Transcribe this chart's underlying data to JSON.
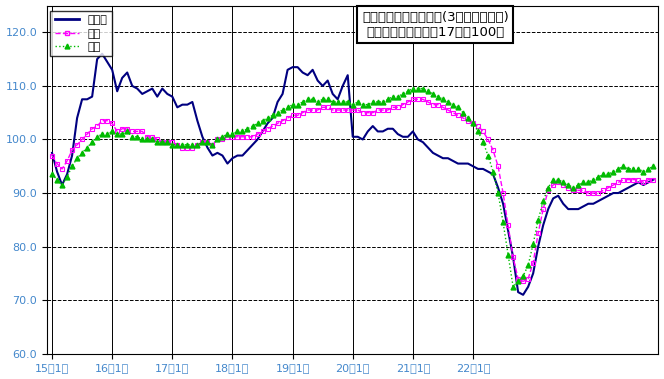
{
  "title_line1": "鉱工業生産指数の推移(3ヶ月移動平均)",
  "title_line2": "（季節調整済、平成17年＝100）",
  "xlabel_ticks": [
    "15年1月",
    "16年1月",
    "17年1月",
    "18年1月",
    "19年1月",
    "20年1月",
    "21年1月",
    "22年1月"
  ],
  "ylim": [
    60.0,
    125.0
  ],
  "yticks": [
    60.0,
    70.0,
    80.0,
    90.0,
    100.0,
    110.0,
    120.0
  ],
  "legend_labels": [
    "鳥取県",
    "中国",
    "全国"
  ],
  "line_colors": [
    "#000080",
    "#ff00ff",
    "#00bb00"
  ],
  "axis_label_color": "#4488cc",
  "bg_color": "#ffffff",
  "tottori": [
    97.5,
    94.0,
    91.5,
    93.5,
    97.0,
    104.0,
    107.5,
    107.5,
    108.0,
    115.0,
    116.0,
    114.5,
    113.0,
    109.0,
    111.5,
    112.5,
    110.0,
    109.5,
    108.5,
    109.0,
    109.5,
    108.0,
    109.5,
    108.5,
    108.0,
    106.0,
    106.5,
    106.5,
    107.0,
    103.5,
    100.5,
    98.5,
    97.0,
    97.5,
    97.0,
    95.5,
    96.5,
    97.0,
    97.0,
    98.0,
    99.0,
    100.0,
    101.5,
    103.0,
    104.0,
    107.0,
    108.5,
    113.0,
    113.5,
    113.5,
    112.5,
    112.0,
    113.0,
    111.0,
    110.0,
    111.0,
    108.5,
    107.5,
    110.0,
    112.0,
    100.5,
    100.5,
    100.0,
    101.5,
    102.5,
    101.5,
    101.5,
    102.0,
    102.0,
    101.0,
    100.5,
    100.5,
    101.5,
    100.0,
    99.5,
    98.5,
    97.5,
    97.0,
    96.5,
    96.5,
    96.0,
    95.5,
    95.5,
    95.5,
    95.0,
    94.5,
    94.5,
    94.0,
    93.5,
    91.0,
    88.0,
    83.0,
    78.0,
    71.5,
    71.0,
    72.5,
    75.0,
    80.0,
    84.0,
    87.0,
    89.0,
    89.5,
    88.0,
    87.0,
    87.0,
    87.0,
    87.5,
    88.0,
    88.0,
    88.5,
    89.0,
    89.5,
    90.0,
    90.0,
    90.5,
    91.0,
    91.5,
    92.0,
    91.5,
    92.0,
    92.5
  ],
  "chugoku": [
    97.0,
    95.5,
    94.5,
    96.0,
    98.0,
    99.0,
    100.0,
    101.0,
    102.0,
    102.5,
    103.5,
    103.5,
    103.0,
    101.5,
    102.0,
    102.0,
    101.5,
    101.5,
    101.5,
    100.5,
    100.5,
    100.0,
    99.5,
    99.5,
    99.5,
    99.0,
    98.5,
    98.5,
    98.5,
    99.0,
    99.5,
    99.5,
    99.0,
    100.0,
    100.0,
    100.5,
    100.5,
    100.5,
    100.5,
    100.5,
    100.5,
    101.0,
    101.5,
    102.0,
    102.5,
    103.0,
    103.5,
    104.0,
    104.5,
    104.5,
    105.0,
    105.5,
    105.5,
    105.5,
    106.0,
    106.0,
    105.5,
    105.5,
    105.5,
    105.5,
    105.5,
    105.5,
    105.0,
    105.0,
    105.0,
    105.5,
    105.5,
    105.5,
    106.0,
    106.0,
    106.5,
    107.0,
    107.5,
    107.5,
    107.5,
    107.0,
    106.5,
    106.5,
    106.0,
    105.5,
    105.0,
    104.5,
    104.0,
    103.5,
    103.0,
    102.5,
    101.5,
    100.0,
    98.0,
    95.0,
    90.0,
    84.0,
    78.0,
    74.0,
    73.5,
    74.0,
    77.0,
    82.5,
    87.0,
    90.5,
    91.5,
    92.0,
    91.5,
    91.0,
    90.5,
    90.5,
    90.5,
    90.0,
    90.0,
    90.0,
    90.5,
    91.0,
    91.5,
    92.0,
    92.5,
    92.5,
    92.5,
    92.5,
    92.0,
    92.5,
    92.5
  ],
  "zenkoku": [
    93.5,
    92.5,
    91.5,
    93.0,
    95.0,
    96.5,
    97.5,
    98.5,
    99.5,
    100.5,
    101.0,
    101.0,
    101.5,
    101.0,
    101.0,
    101.5,
    100.5,
    100.5,
    100.0,
    100.0,
    100.0,
    99.5,
    99.5,
    99.5,
    99.0,
    99.0,
    99.0,
    99.0,
    99.0,
    99.0,
    99.5,
    99.5,
    99.0,
    100.0,
    100.5,
    101.0,
    101.0,
    101.5,
    101.5,
    102.0,
    102.5,
    103.0,
    103.5,
    104.0,
    104.5,
    105.0,
    105.5,
    106.0,
    106.5,
    106.5,
    107.0,
    107.5,
    107.5,
    107.0,
    107.5,
    107.5,
    107.0,
    107.0,
    107.0,
    107.0,
    106.5,
    107.0,
    106.5,
    106.5,
    107.0,
    107.0,
    107.0,
    107.5,
    108.0,
    108.0,
    108.5,
    109.0,
    109.5,
    109.5,
    109.5,
    109.0,
    108.5,
    108.0,
    107.5,
    107.0,
    106.5,
    106.0,
    105.0,
    104.0,
    103.0,
    101.5,
    99.5,
    97.0,
    94.0,
    90.0,
    84.5,
    78.5,
    72.5,
    73.5,
    74.5,
    76.5,
    80.5,
    85.0,
    88.5,
    91.0,
    92.5,
    92.5,
    92.0,
    91.5,
    91.0,
    91.5,
    92.0,
    92.0,
    92.5,
    93.0,
    93.5,
    93.5,
    94.0,
    94.5,
    95.0,
    94.5,
    94.5,
    94.5,
    94.0,
    94.5,
    95.0
  ]
}
